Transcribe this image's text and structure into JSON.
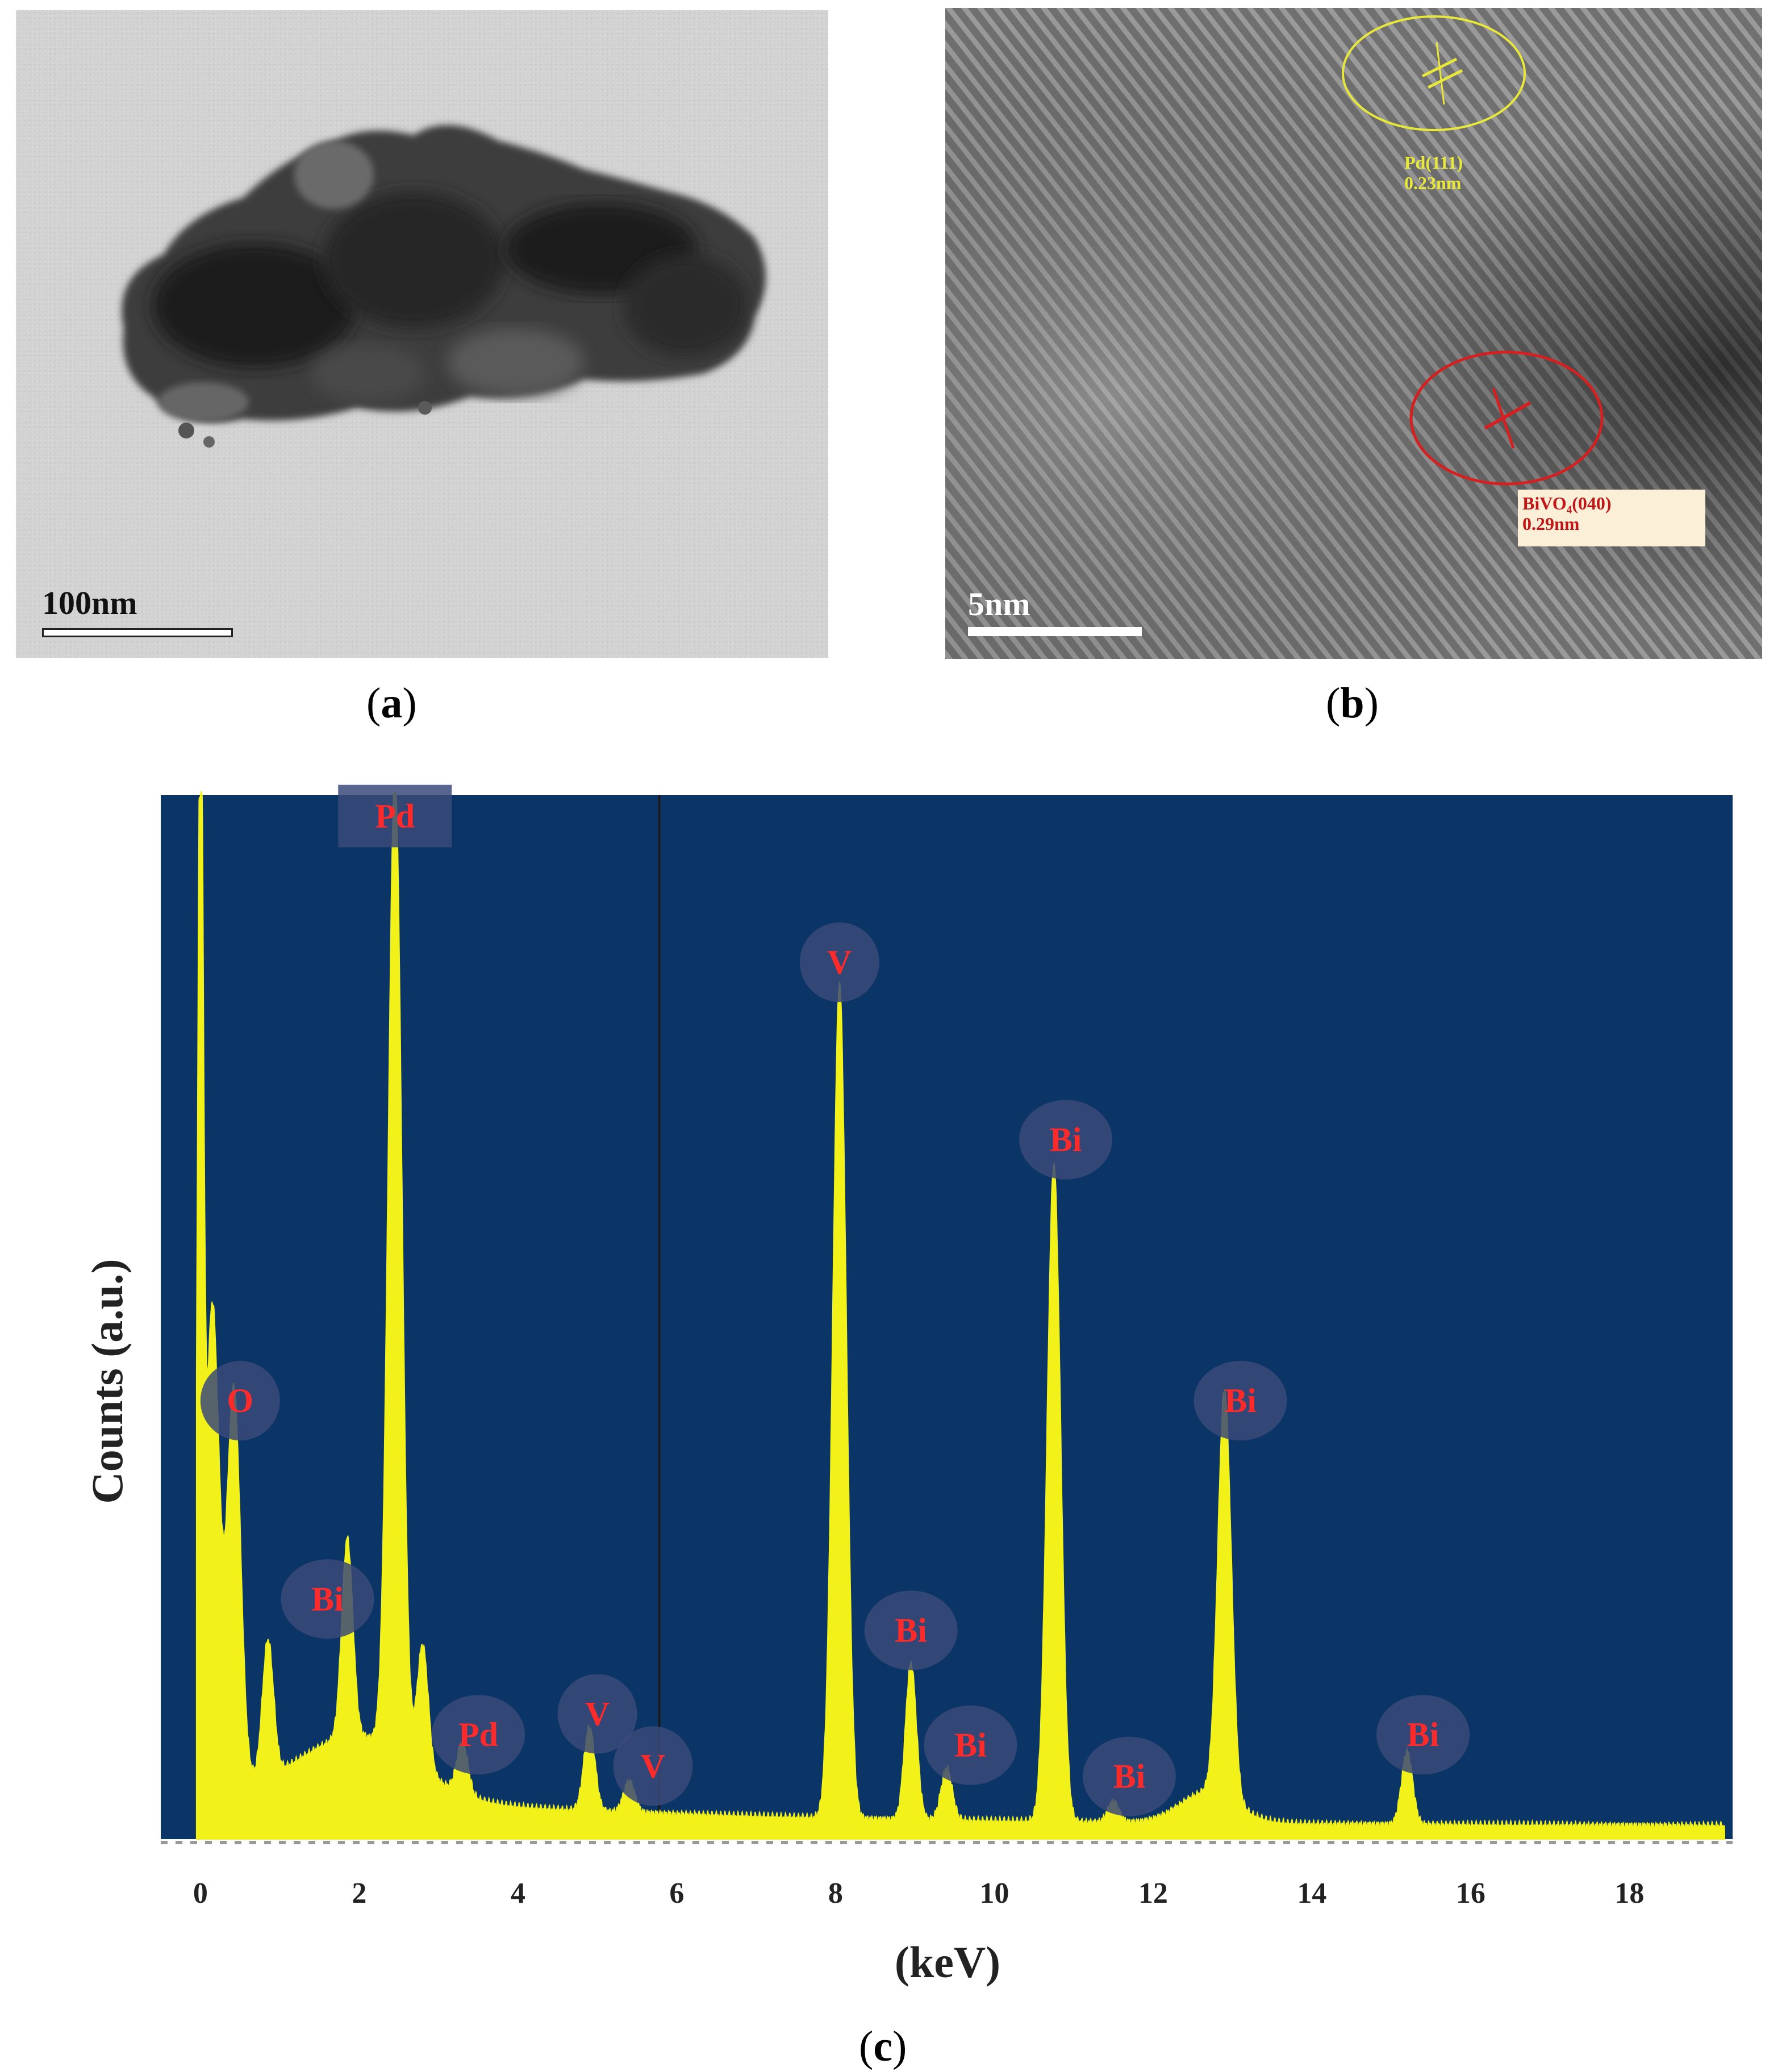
{
  "panel_a": {
    "letter": "a",
    "scale_label": "100nm",
    "scale_value": 100,
    "scale_unit": "nm"
  },
  "panel_b": {
    "letter": "b",
    "scale_label": "5nm",
    "scale_value": 5,
    "scale_unit": "nm",
    "annotations": [
      {
        "name": "Pd(111)",
        "label_line1": "Pd(111)",
        "label_line2": "0.23nm",
        "color": "#e8e83a"
      },
      {
        "name": "BiVO4(040)",
        "label_line1": "BiVO₄(040)",
        "label_line2": "0.29nm",
        "color": "#d42020"
      }
    ]
  },
  "panel_c": {
    "letter": "c"
  },
  "colors": {
    "plot_background": "#0b3566",
    "spectrum": "#f2f21a",
    "peak_label_text": "#ff2a2a",
    "peak_label_badge": "#3b4a7a"
  },
  "chart_data": {
    "type": "line",
    "title": "",
    "xlabel": "(keV)",
    "ylabel": "Counts (a.u.)",
    "xlim": [
      -0.5,
      19.3
    ],
    "ylim": [
      0,
      1.0
    ],
    "xticks": [
      0,
      2,
      4,
      6,
      8,
      10,
      12,
      14,
      16,
      18
    ],
    "grid": false,
    "legend": "none",
    "series": [
      {
        "peaks": [
          {
            "x": 0.0,
            "y": 1.0
          },
          {
            "x": 0.15,
            "y": 0.46
          },
          {
            "x": 0.42,
            "y": 0.38
          },
          {
            "x": 0.85,
            "y": 0.13
          },
          {
            "x": 1.85,
            "y": 0.19
          },
          {
            "x": 2.45,
            "y": 0.94
          },
          {
            "x": 2.8,
            "y": 0.12
          },
          {
            "x": 3.3,
            "y": 0.05
          },
          {
            "x": 4.9,
            "y": 0.08
          },
          {
            "x": 5.4,
            "y": 0.03
          },
          {
            "x": 8.05,
            "y": 0.8
          },
          {
            "x": 8.95,
            "y": 0.15
          },
          {
            "x": 9.4,
            "y": 0.05
          },
          {
            "x": 10.75,
            "y": 0.63
          },
          {
            "x": 11.5,
            "y": 0.02
          },
          {
            "x": 12.9,
            "y": 0.39
          },
          {
            "x": 15.2,
            "y": 0.07
          }
        ]
      }
    ],
    "peak_labels": [
      {
        "text": "O",
        "x": 0.5,
        "y": 0.42
      },
      {
        "text": "Pd",
        "x": 2.45,
        "y": 0.98
      },
      {
        "text": "Bi",
        "x": 1.6,
        "y": 0.23
      },
      {
        "text": "Pd",
        "x": 3.5,
        "y": 0.1
      },
      {
        "text": "V",
        "x": 5.0,
        "y": 0.12
      },
      {
        "text": "V",
        "x": 5.7,
        "y": 0.07
      },
      {
        "text": "V",
        "x": 8.05,
        "y": 0.84
      },
      {
        "text": "Bi",
        "x": 8.95,
        "y": 0.2
      },
      {
        "text": "Bi",
        "x": 9.7,
        "y": 0.09
      },
      {
        "text": "Bi",
        "x": 10.9,
        "y": 0.67
      },
      {
        "text": "Bi",
        "x": 11.7,
        "y": 0.06
      },
      {
        "text": "Bi",
        "x": 13.1,
        "y": 0.42
      },
      {
        "text": "Bi",
        "x": 15.4,
        "y": 0.1
      }
    ]
  }
}
